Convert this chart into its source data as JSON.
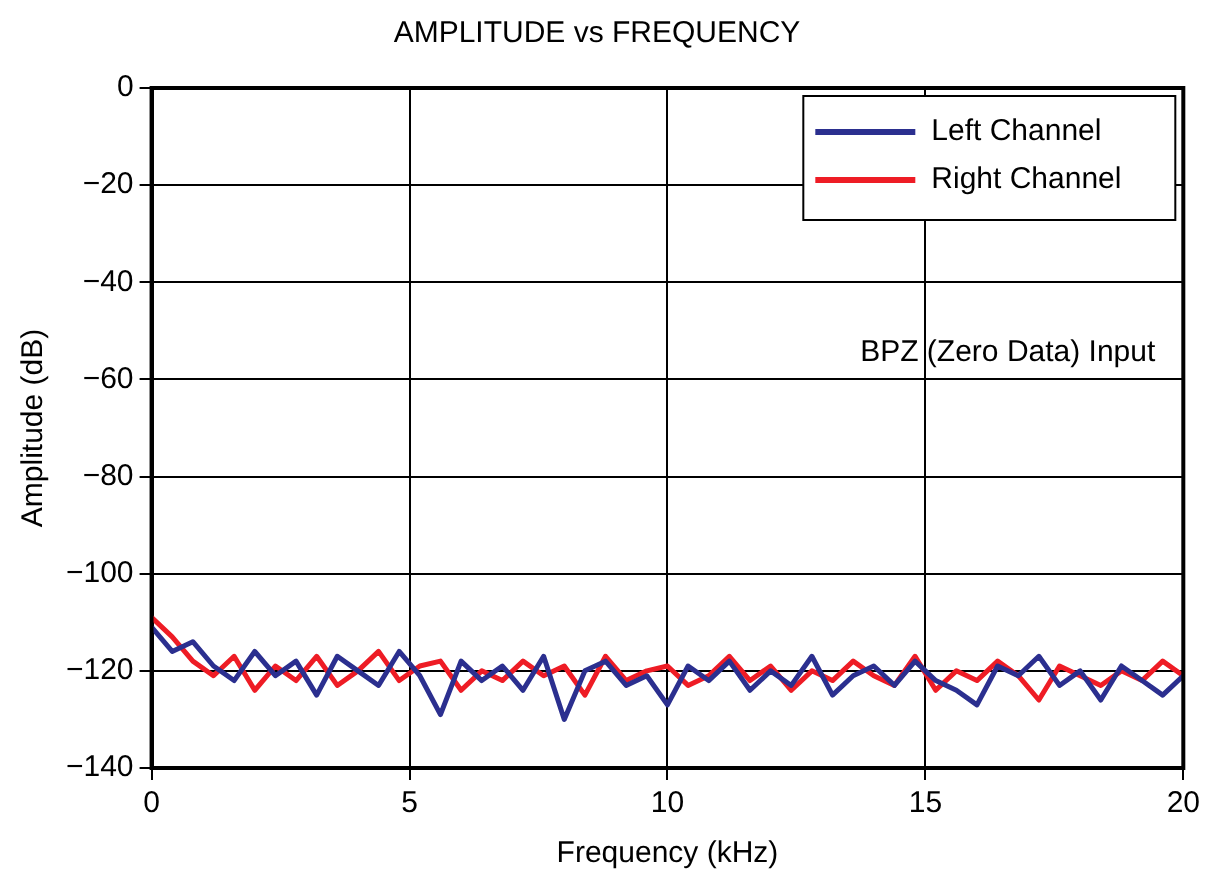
{
  "chart_data": {
    "type": "line",
    "title": "AMPLITUDE vs FREQUENCY",
    "xlabel": "Frequency (kHz)",
    "ylabel": "Amplitude (dB)",
    "x": [
      0,
      0.4,
      0.8,
      1.2,
      1.6,
      2,
      2.4,
      2.8,
      3.2,
      3.6,
      4,
      4.4,
      4.8,
      5.2,
      5.6,
      6,
      6.4,
      6.8,
      7.2,
      7.6,
      8,
      8.4,
      8.8,
      9.2,
      9.6,
      10,
      10.4,
      10.8,
      11.2,
      11.6,
      12,
      12.4,
      12.8,
      13.2,
      13.6,
      14,
      14.4,
      14.8,
      15.2,
      15.6,
      16,
      16.4,
      16.8,
      17.2,
      17.6,
      18,
      18.4,
      18.8,
      19.2,
      19.6,
      20
    ],
    "series": [
      {
        "name": "Left Channel",
        "color": "#2b2f8f",
        "values": [
          -111,
          -116,
          -114,
          -119,
          -122,
          -116,
          -121,
          -118,
          -125,
          -117,
          -120,
          -123,
          -116,
          -121,
          -129,
          -118,
          -122,
          -119,
          -124,
          -117,
          -130,
          -120,
          -118,
          -123,
          -121,
          -127,
          -119,
          -122,
          -118,
          -124,
          -120,
          -123,
          -117,
          -125,
          -121,
          -119,
          -123,
          -118,
          -122,
          -124,
          -127,
          -119,
          -121,
          -117,
          -123,
          -120,
          -126,
          -119,
          -122,
          -125,
          -121
        ]
      },
      {
        "name": "Right Channel",
        "color": "#ee1c25",
        "values": [
          -109,
          -113,
          -118,
          -121,
          -117,
          -124,
          -119,
          -122,
          -117,
          -123,
          -120,
          -116,
          -122,
          -119,
          -118,
          -124,
          -120,
          -122,
          -118,
          -121,
          -119,
          -125,
          -117,
          -122,
          -120,
          -119,
          -123,
          -121,
          -117,
          -122,
          -119,
          -124,
          -120,
          -122,
          -118,
          -121,
          -123,
          -117,
          -124,
          -120,
          -122,
          -118,
          -121,
          -126,
          -119,
          -121,
          -123,
          -120,
          -122,
          -118,
          -121
        ]
      }
    ],
    "xlim": [
      0,
      20
    ],
    "xticks": [
      0,
      5,
      10,
      15,
      20
    ],
    "ylim": [
      -140,
      0
    ],
    "yticks": [
      0,
      -20,
      -40,
      -60,
      -80,
      -100,
      -120,
      -140
    ],
    "grid": true,
    "legend": "top right",
    "marker": "none",
    "line_style": "solid",
    "annotations": [
      "BPZ (Zero Data) Input"
    ]
  }
}
